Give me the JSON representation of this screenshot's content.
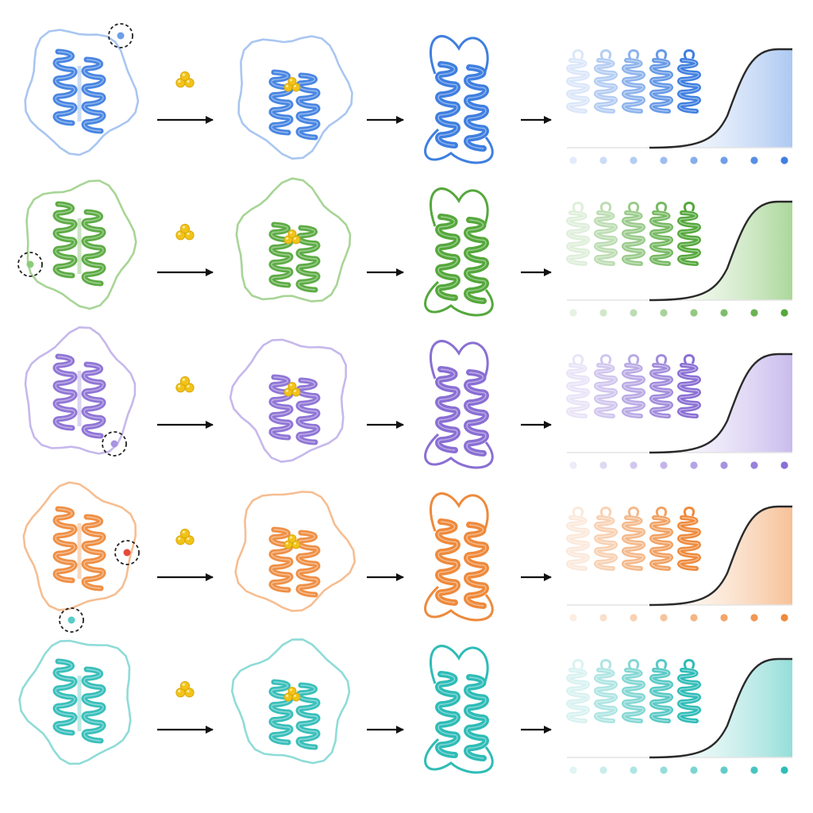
{
  "figure": {
    "rows": [
      {
        "id": "blue",
        "color": "#3f7fe0",
        "light": "#a9c6f1",
        "pale": "#dbe7fa",
        "tag_side": "right-top",
        "tag_dot": "#6d9ee8"
      },
      {
        "id": "green",
        "color": "#55a83c",
        "light": "#a7d596",
        "pale": "#dcefd4",
        "tag_side": "left-bottom",
        "tag_dot": "#8ccc7b"
      },
      {
        "id": "purple",
        "color": "#8a6fd4",
        "light": "#c6b8ec",
        "pale": "#e6def8",
        "tag_side": "right-bottom",
        "tag_dot": "#a993e3"
      },
      {
        "id": "orange",
        "color": "#ee8a3c",
        "light": "#f6be92",
        "pale": "#fbe3cf",
        "tag_side": "right-mid",
        "tag_dot": "#e8493a"
      },
      {
        "id": "teal",
        "color": "#2fbcb7",
        "light": "#8fdcd7",
        "pale": "#d3f1ef",
        "tag_side": "top-left",
        "tag_dot": "#59cbc6"
      }
    ],
    "ligand": {
      "name": "ligand-cluster",
      "color": "#f2c318",
      "edge": "#d9a80c"
    },
    "series": {
      "ensemble_count": 5,
      "dot_count": 8
    },
    "icons": [
      "ribbon-protein-icon",
      "ligand-cluster-icon",
      "arrow-icon",
      "sigmoid-curve-icon"
    ]
  }
}
